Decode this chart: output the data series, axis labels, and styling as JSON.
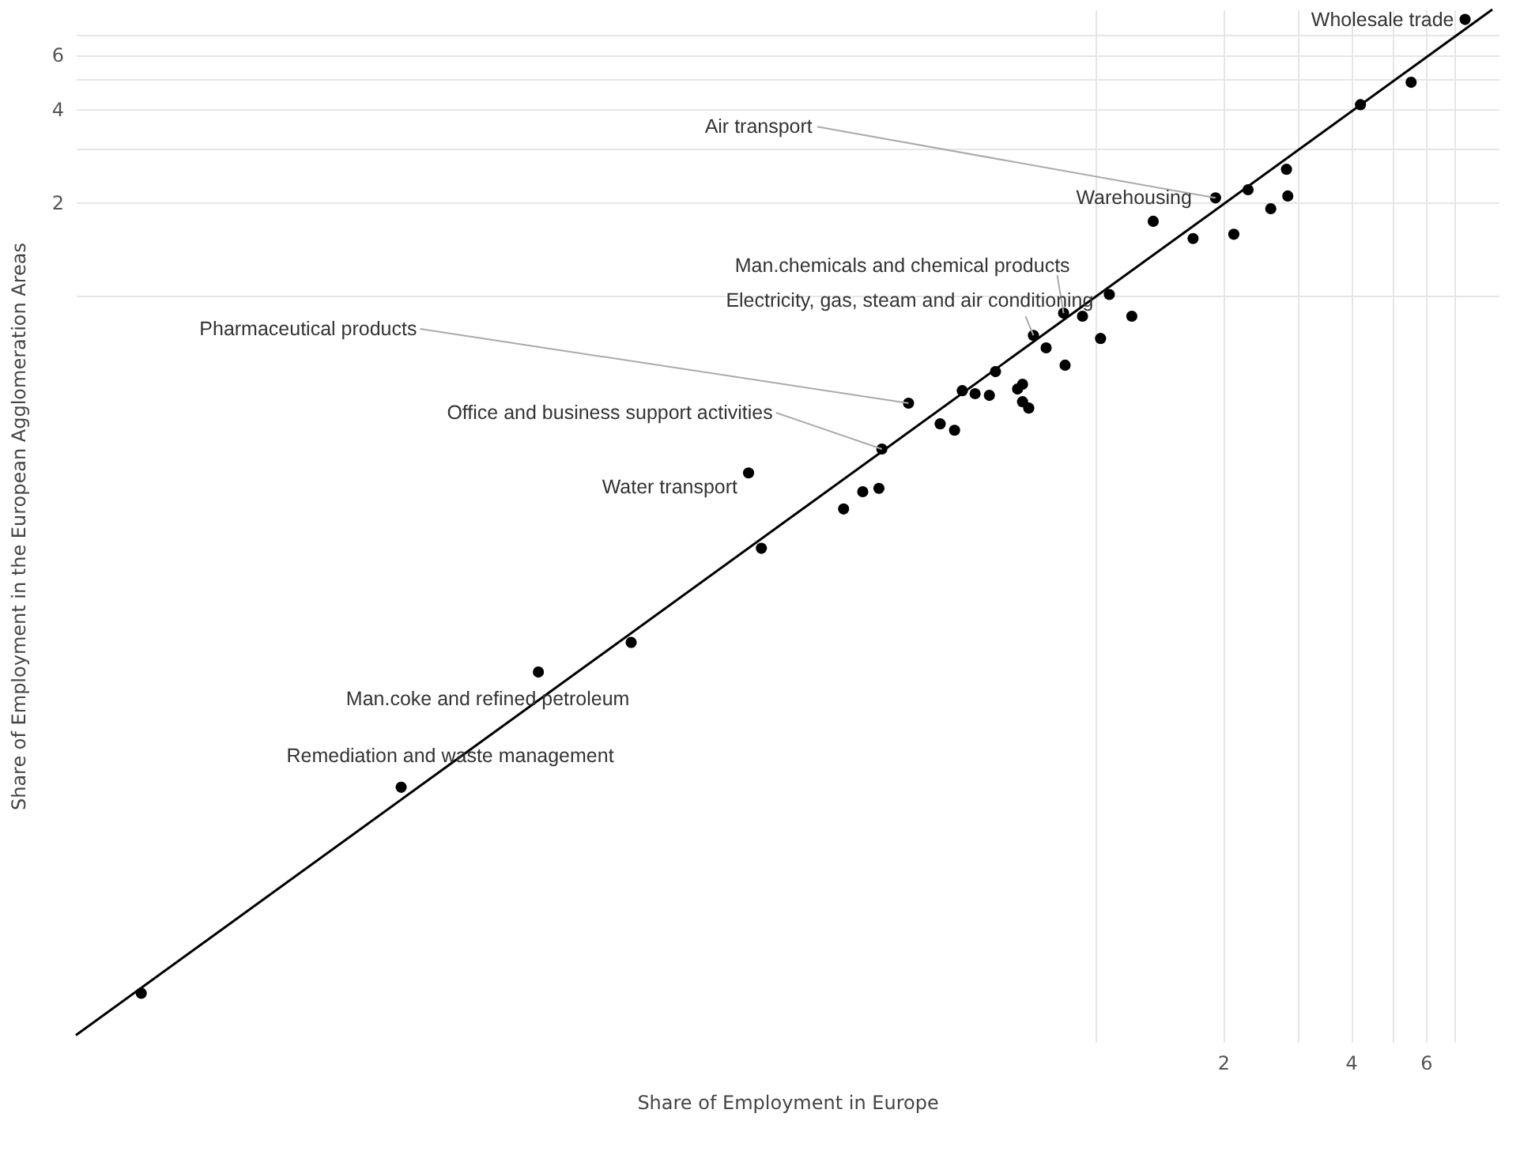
{
  "chart_data": {
    "type": "scatter",
    "xlabel": "Share of Employment in Europe",
    "ylabel": "Share of Employment in the European Agglomeration Areas",
    "xlim": [
      0.004,
      8.9
    ],
    "ylim": [
      0.0039,
      8.4
    ],
    "xticks": [
      {
        "value": 1,
        "label": null
      },
      2,
      {
        "value": 3,
        "label": null
      },
      4,
      {
        "value": 5,
        "label": null
      },
      6,
      {
        "value": 7,
        "label": null
      }
    ],
    "yticks": [
      {
        "value": 1,
        "label": null
      },
      2,
      {
        "value": 3,
        "label": null
      },
      4,
      {
        "value": 5,
        "label": null
      },
      6,
      {
        "value": 7,
        "label": null
      }
    ],
    "log": "xy",
    "grid": true,
    "series": [
      {
        "marker": "circle",
        "color": "#000000",
        "x": [
          0.0057,
          0.0233,
          0.049,
          0.081,
          0.164,
          0.153,
          0.256,
          0.284,
          0.31,
          0.315,
          0.364,
          0.432,
          0.467,
          0.487,
          0.522,
          0.564,
          0.583,
          0.657,
          0.675,
          0.675,
          0.698,
          0.716,
          0.767,
          0.85,
          0.843,
          0.934,
          1.03,
          1.08,
          1.22,
          1.37,
          1.7,
          1.92,
          2.12,
          2.29,
          2.59,
          2.82,
          2.84,
          4.21,
          5.54,
          7.42
        ],
        "values": [
          0.0056,
          0.0259,
          0.061,
          0.076,
          0.153,
          0.268,
          0.205,
          0.233,
          0.239,
          0.32,
          0.45,
          0.386,
          0.368,
          0.494,
          0.483,
          0.477,
          0.569,
          0.5,
          0.518,
          0.455,
          0.434,
          0.745,
          0.679,
          0.597,
          0.879,
          0.859,
          0.728,
          1.01,
          0.859,
          1.74,
          1.53,
          2.07,
          1.58,
          2.2,
          1.91,
          2.56,
          2.1,
          4.14,
          4.89,
          7.8
        ]
      },
      {
        "type": "line",
        "line_style": "solid",
        "color": "#000000",
        "x": [
          0.004,
          8.6
        ],
        "values": [
          0.0041,
          8.4
        ]
      }
    ],
    "annotations": [
      {
        "text": "Wholesale trade",
        "x": 7.42,
        "y": 7.8
      },
      {
        "text": "Air transport",
        "x": 1.92,
        "y": 2.07
      },
      {
        "text": "Warehousing",
        "x": 1.92,
        "y": 2.07
      },
      {
        "text": "Man.chemicals and chemical products",
        "x": 0.843,
        "y": 0.879
      },
      {
        "text": "Electricity, gas, steam and air conditioning",
        "x": 0.716,
        "y": 0.745
      },
      {
        "text": "Pharmaceutical products",
        "x": 0.364,
        "y": 0.45
      },
      {
        "text": "Office and business support activities",
        "x": 0.315,
        "y": 0.32
      },
      {
        "text": "Water transport",
        "x": 0.153,
        "y": 0.268
      },
      {
        "text": "Man.coke and refined petroleum",
        "x": 0.049,
        "y": 0.061
      },
      {
        "text": "Remediation and waste management",
        "x": 0.0233,
        "y": 0.0259
      }
    ]
  }
}
